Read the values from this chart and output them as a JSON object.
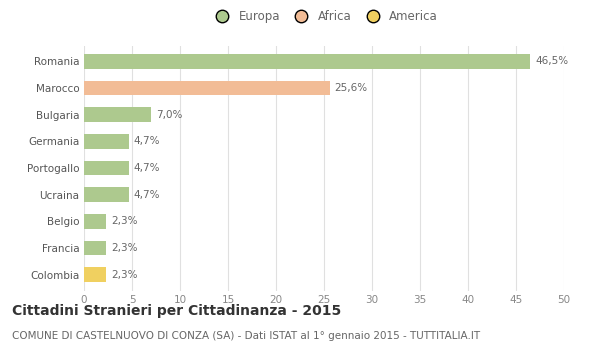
{
  "categories": [
    "Romania",
    "Marocco",
    "Bulgaria",
    "Germania",
    "Portogallo",
    "Ucraina",
    "Belgio",
    "Francia",
    "Colombia"
  ],
  "values": [
    46.5,
    25.6,
    7.0,
    4.7,
    4.7,
    4.7,
    2.3,
    2.3,
    2.3
  ],
  "labels": [
    "46,5%",
    "25,6%",
    "7,0%",
    "4,7%",
    "4,7%",
    "4,7%",
    "2,3%",
    "2,3%",
    "2,3%"
  ],
  "colors": [
    "#adc98e",
    "#f2bc96",
    "#adc98e",
    "#adc98e",
    "#adc98e",
    "#adc98e",
    "#adc98e",
    "#adc98e",
    "#f0d060"
  ],
  "legend_entries": [
    {
      "label": "Europa",
      "color": "#adc98e"
    },
    {
      "label": "Africa",
      "color": "#f2bc96"
    },
    {
      "label": "America",
      "color": "#f0d060"
    }
  ],
  "xlim": [
    0,
    50
  ],
  "xticks": [
    0,
    5,
    10,
    15,
    20,
    25,
    30,
    35,
    40,
    45,
    50
  ],
  "title": "Cittadini Stranieri per Cittadinanza - 2015",
  "subtitle": "COMUNE DI CASTELNUOVO DI CONZA (SA) - Dati ISTAT al 1° gennaio 2015 - TUTTITALIA.IT",
  "background_color": "#ffffff",
  "grid_color": "#e0e0e0",
  "bar_height": 0.55,
  "title_fontsize": 10,
  "subtitle_fontsize": 7.5,
  "label_fontsize": 7.5,
  "tick_fontsize": 7.5,
  "legend_fontsize": 8.5
}
